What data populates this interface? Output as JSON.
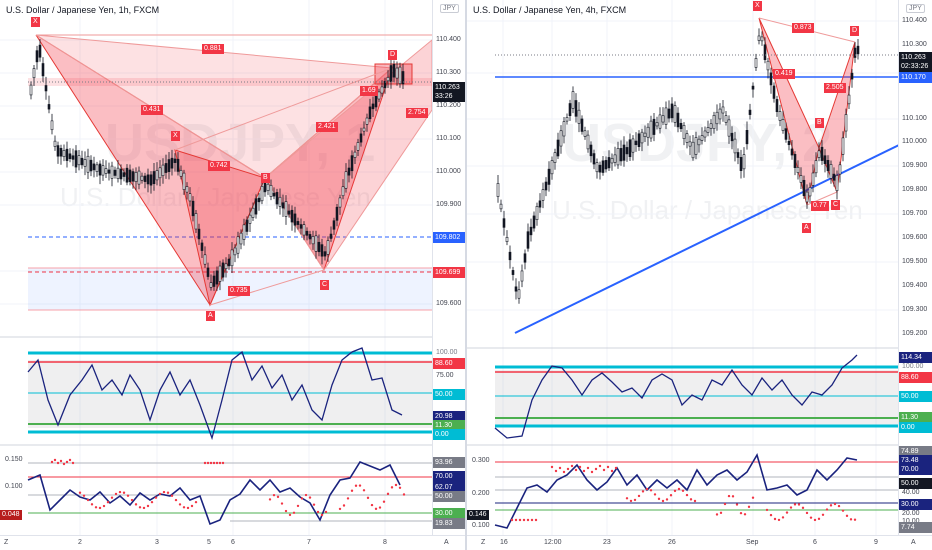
{
  "left": {
    "title": "U.S. Dollar / Japanese Yen, 1h, FXCM",
    "watermark_symbol": "USDJPY, 1",
    "watermark_name": "U.S. Dollar / Japanese Yen",
    "currency": "JPY",
    "price_ticks": [
      "110.400",
      "110.300",
      "110.200",
      "110.100",
      "110.000",
      "109.900",
      "109.800",
      "109.700",
      "109.600"
    ],
    "current_price": "110.263",
    "countdown": "33:26",
    "price_labels": [
      {
        "text": "109.802",
        "color": "#2962ff"
      },
      {
        "text": "109.699",
        "color": "#f23645"
      }
    ],
    "pattern_points": [
      "X",
      "X",
      "B",
      "A",
      "C",
      "D"
    ],
    "ratios": [
      "0.881",
      "0.431",
      "0.742",
      "0.735",
      "2.421",
      "1.69",
      "2.754"
    ],
    "osc1_ticks": [
      "100.00",
      "88.60",
      "75.00",
      "50.00",
      "11.30",
      "0.00"
    ],
    "osc1_value": "20.98",
    "osc2_ticks": [
      "0.150",
      "0.100",
      "0.048"
    ],
    "osc2_right": [
      "93.96",
      "70.00",
      "62.07",
      "50.00",
      "30.00",
      "19.83"
    ],
    "time_labels": [
      "2",
      "3",
      "5",
      "6",
      "7",
      "8"
    ],
    "corner_z": "Z",
    "corner_a": "A"
  },
  "right": {
    "title": "U.S. Dollar / Japanese Yen, 4h, FXCM",
    "watermark_symbol": "USDJPY, 2",
    "watermark_name": "U.S. Dollar / Japanese Yen",
    "currency": "JPY",
    "price_ticks": [
      "110.400",
      "110.300",
      "110.100",
      "110.000",
      "109.900",
      "109.800",
      "109.700",
      "109.600",
      "109.500",
      "109.400",
      "109.300",
      "109.200",
      "109.100"
    ],
    "current_price": "110.263",
    "countdown": "02:33:26",
    "support_price": "110.170",
    "pattern_points": [
      "X",
      "D",
      "B",
      "A",
      "C"
    ],
    "ratios": [
      "0.873",
      "0.419",
      "2.505",
      "0.77"
    ],
    "osc1_ticks": [
      "114.34",
      "100.00",
      "88.60",
      "50.00",
      "11.30",
      "0.00"
    ],
    "osc2_ticks": [
      "0.300",
      "0.200",
      "0.146",
      "0.100"
    ],
    "osc2_right": [
      "74.89",
      "73.48",
      "70.00",
      "50.00",
      "40.00",
      "30.00",
      "20.00",
      "10.00",
      "7.74"
    ],
    "time_labels": [
      "16",
      "12:00",
      "23",
      "26",
      "Sep",
      "6",
      "9"
    ],
    "corner_z": "Z",
    "corner_a": "A"
  }
}
